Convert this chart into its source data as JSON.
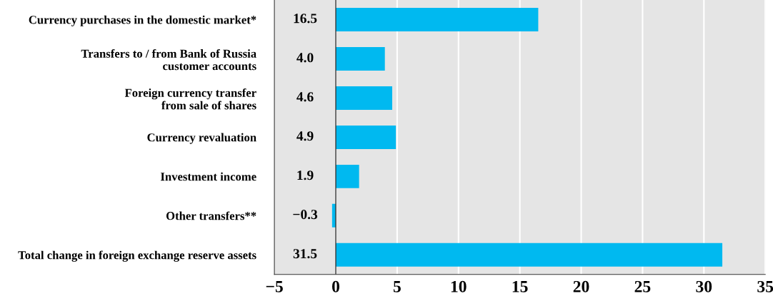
{
  "chart_data": {
    "type": "bar",
    "orientation": "horizontal",
    "categories": [
      "Currency purchases in the domestic market*",
      "Transfers to / from Bank of Russia\ncustomer accounts",
      "Foreign currency transfer\nfrom sale of shares",
      "Currency revaluation",
      "Investment income",
      "Other transfers**",
      "Total change in foreign exchange reserve assets"
    ],
    "values": [
      16.5,
      4.0,
      4.6,
      4.9,
      1.9,
      -0.3,
      31.5
    ],
    "value_labels": [
      "16.5",
      "4.0",
      "4.6",
      "4.9",
      "1.9",
      "−0.3",
      "31.5"
    ],
    "color": "#00b9f0",
    "xlim": [
      -5,
      35
    ],
    "xticks": [
      {
        "value": -5,
        "label": "−5"
      },
      0,
      5,
      10,
      15,
      20,
      25,
      30,
      35
    ],
    "grid": "x"
  }
}
